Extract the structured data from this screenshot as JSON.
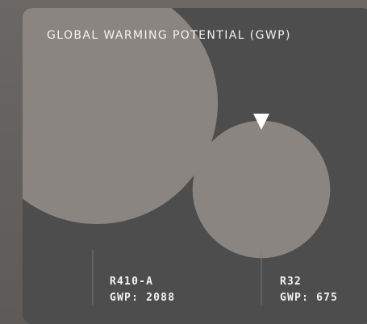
{
  "chart_data": {
    "type": "bubble",
    "title": "GLOBAL WARMING POTENTIAL (GWP)",
    "series": [
      {
        "name": "R410-A",
        "category_label": "R410-A",
        "value_label": "GWP: 2088",
        "value": 2088,
        "color": "#8b8581"
      },
      {
        "name": "R32",
        "category_label": "R32",
        "value_label": "GWP: 675",
        "value": 675,
        "color": "#8b8581"
      }
    ],
    "highlight_marker": "down-triangle-icon"
  }
}
